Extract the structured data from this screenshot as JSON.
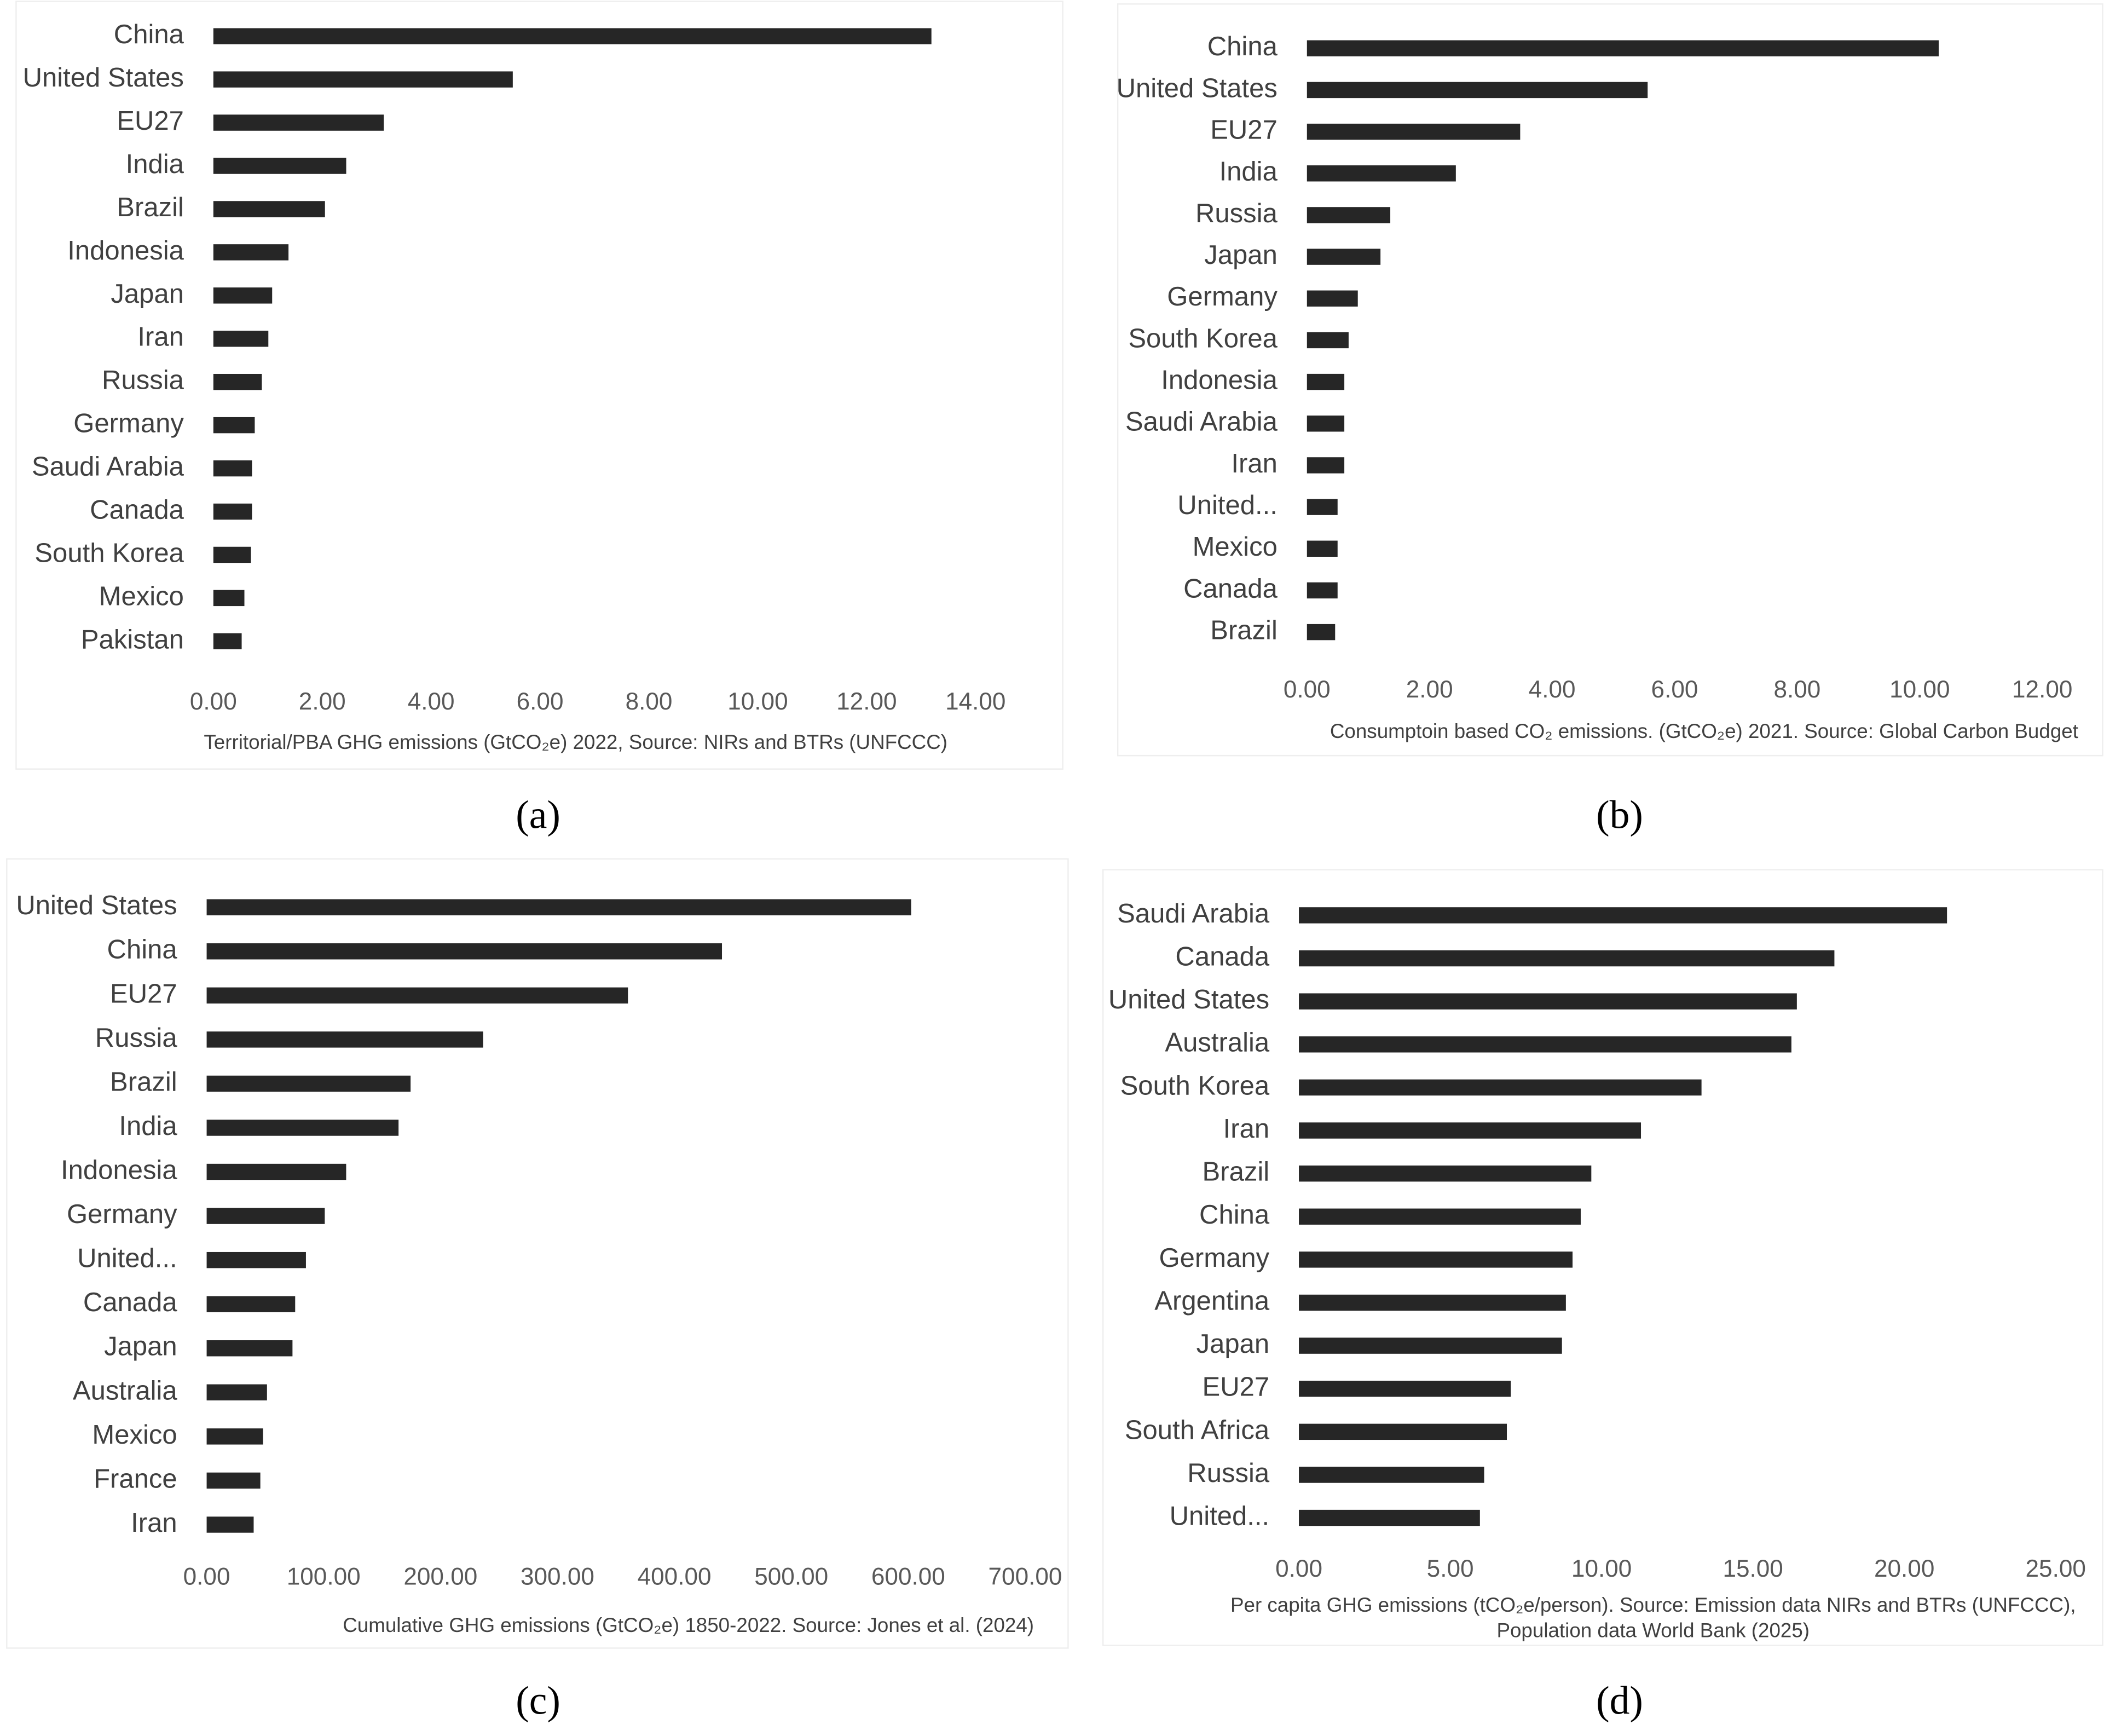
{
  "chart_data": [
    {
      "type": "bar",
      "orientation": "horizontal",
      "label": "(a)",
      "xlabel": [
        "Territorial/PBA GHG emissions (GtCO₂e) 2022, Source: NIRs and BTRs (UNFCCC)"
      ],
      "categories": [
        "China",
        "United States",
        "EU27",
        "India",
        "Brazil",
        "Indonesia",
        "Japan",
        "Iran",
        "Russia",
        "Germany",
        "Saudi Arabia",
        "Canada",
        "South Korea",
        "Mexico",
        "Pakistan"
      ],
      "values": [
        13.19,
        5.5,
        3.13,
        2.44,
        2.05,
        1.38,
        1.08,
        1.01,
        0.89,
        0.76,
        0.71,
        0.71,
        0.69,
        0.57,
        0.52
      ],
      "color": "#262626",
      "grid": false,
      "xlim": [
        0,
        14
      ],
      "xticks": [
        {
          "value": 0,
          "label": "0.00"
        },
        {
          "value": 2,
          "label": "2.00"
        },
        {
          "value": 4,
          "label": "4.00"
        },
        {
          "value": 6,
          "label": "6.00"
        },
        {
          "value": 8,
          "label": "8.00"
        },
        {
          "value": 10,
          "label": "10.00"
        },
        {
          "value": 12,
          "label": "12.00"
        },
        {
          "value": 14,
          "label": "14.00"
        }
      ]
    },
    {
      "type": "bar",
      "orientation": "horizontal",
      "label": "(b)",
      "xlabel": [
        "Consumptoin based CO₂ emissions. (GtCO₂e) 2021. Source: Global Carbon Budget"
      ],
      "categories": [
        "China",
        "United States",
        "EU27",
        "India",
        "Russia",
        "Japan",
        "Germany",
        "South Korea",
        "Indonesia",
        "Saudi Arabia",
        "Iran",
        "United...",
        "Mexico",
        "Canada",
        "Brazil"
      ],
      "values": [
        10.31,
        5.56,
        3.48,
        2.43,
        1.36,
        1.2,
        0.83,
        0.68,
        0.61,
        0.61,
        0.61,
        0.5,
        0.5,
        0.5,
        0.46
      ],
      "color": "#262626",
      "grid": false,
      "xlim": [
        0,
        12
      ],
      "xticks": [
        {
          "value": 0,
          "label": "0.00"
        },
        {
          "value": 2,
          "label": "2.00"
        },
        {
          "value": 4,
          "label": "4.00"
        },
        {
          "value": 6,
          "label": "6.00"
        },
        {
          "value": 8,
          "label": "8.00"
        },
        {
          "value": 10,
          "label": "10.00"
        },
        {
          "value": 12,
          "label": "12.00"
        }
      ]
    },
    {
      "type": "bar",
      "orientation": "horizontal",
      "label": "(c)",
      "xlabel": [
        "Cumulative GHG emissions (GtCO₂e) 1850-2022. Source: Jones et al. (2024)"
      ],
      "categories": [
        "United States",
        "China",
        "EU27",
        "Russia",
        "Brazil",
        "India",
        "Indonesia",
        "Germany",
        "United...",
        "Canada",
        "Japan",
        "Australia",
        "Mexico",
        "France",
        "Iran"
      ],
      "values": [
        602.5,
        440.7,
        360.3,
        236.4,
        174.4,
        164.1,
        119.3,
        101.0,
        84.9,
        75.7,
        73.4,
        51.6,
        48.2,
        45.9,
        40.2
      ],
      "color": "#262626",
      "grid": false,
      "xlim": [
        0,
        700
      ],
      "xticks": [
        {
          "value": 0,
          "label": "0.00"
        },
        {
          "value": 100,
          "label": "100.00"
        },
        {
          "value": 200,
          "label": "200.00"
        },
        {
          "value": 300,
          "label": "300.00"
        },
        {
          "value": 400,
          "label": "400.00"
        },
        {
          "value": 500,
          "label": "500.00"
        },
        {
          "value": 600,
          "label": "600.00"
        },
        {
          "value": 700,
          "label": "700.00"
        }
      ]
    },
    {
      "type": "bar",
      "orientation": "horizontal",
      "label": "(d)",
      "xlabel": [
        "Per capita GHG emissions (tCO₂e/person). Source: Emission data NIRs and BTRs (UNFCCC),",
        "Population data World Bank (2025)"
      ],
      "categories": [
        "Saudi Arabia",
        "Canada",
        "United States",
        "Australia",
        "South Korea",
        "Iran",
        "Brazil",
        "China",
        "Germany",
        "Argentina",
        "Japan",
        "EU27",
        "South Africa",
        "Russia",
        "United..."
      ],
      "values": [
        21.41,
        17.69,
        16.45,
        16.27,
        13.3,
        11.3,
        9.66,
        9.31,
        9.04,
        8.82,
        8.69,
        7.0,
        6.87,
        6.12,
        5.98
      ],
      "color": "#262626",
      "grid": false,
      "xlim": [
        0,
        25
      ],
      "xticks": [
        {
          "value": 0,
          "label": "0.00"
        },
        {
          "value": 5,
          "label": "5.00"
        },
        {
          "value": 10,
          "label": "10.00"
        },
        {
          "value": 15,
          "label": "15.00"
        },
        {
          "value": 20,
          "label": "20.00"
        },
        {
          "value": 25,
          "label": "25.00"
        }
      ]
    }
  ]
}
